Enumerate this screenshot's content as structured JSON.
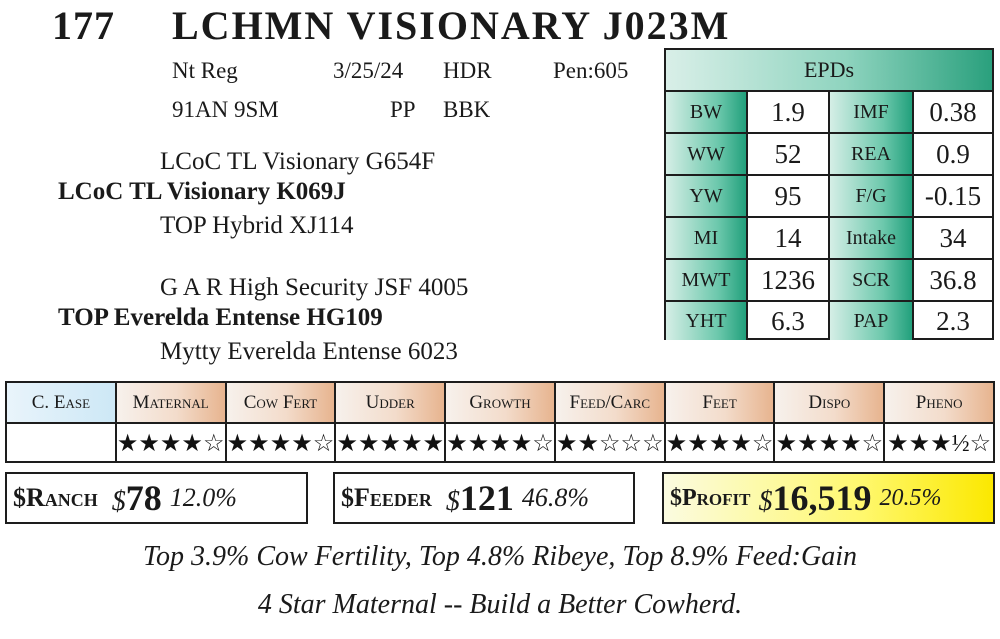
{
  "header": {
    "lot_number": "177",
    "name": "LCHMN VISIONARY J023M"
  },
  "info": {
    "registration": "Nt Reg",
    "birth_date": "3/25/24",
    "category": "HDR",
    "pen": "Pen:605",
    "tattoo": "91AN 9SM",
    "polled": "PP",
    "color": "BBK"
  },
  "pedigree": {
    "sire_sire": "LCoC TL Visionary G654F",
    "sire": "LCoC TL Visionary K069J",
    "sire_dam": "TOP Hybrid XJ114",
    "dam_sire": "G A R High Security JSF 4005",
    "dam": "TOP Everelda Entense HG109",
    "dam_dam": "Mytty Everelda Entense 6023"
  },
  "epds": {
    "title": "EPDs",
    "rows": [
      {
        "l1": "BW",
        "v1": "1.9",
        "l2": "IMF",
        "v2": "0.38"
      },
      {
        "l1": "WW",
        "v1": "52",
        "l2": "REA",
        "v2": "0.9"
      },
      {
        "l1": "YW",
        "v1": "95",
        "l2": "F/G",
        "v2": "-0.15"
      },
      {
        "l1": "MI",
        "v1": "14",
        "l2": "Intake",
        "v2": "34"
      },
      {
        "l1": "MWT",
        "v1": "1236",
        "l2": "SCR",
        "v2": "36.8"
      },
      {
        "l1": "YHT",
        "v1": "6.3",
        "l2": "PAP",
        "v2": "2.3"
      }
    ]
  },
  "ratings": {
    "headers": [
      "C. Ease",
      "Maternal",
      "Cow Fert",
      "Udder",
      "Growth",
      "Feed/Carc",
      "Feet",
      "Dispo",
      "Pheno"
    ],
    "stars": [
      "",
      "★★★★☆",
      "★★★★☆",
      "★★★★★",
      "★★★★☆",
      "★★☆☆☆",
      "★★★★☆",
      "★★★★☆",
      "★★★½☆"
    ],
    "star_values": [
      null,
      4,
      4,
      5,
      4,
      2,
      4,
      4,
      3.5
    ]
  },
  "indexes": {
    "ranch": {
      "label": "$Ranch",
      "currency": "$",
      "value": "78",
      "percent": "12.0%"
    },
    "feeder": {
      "label": "$Feeder",
      "currency": "$",
      "value": "121",
      "percent": "46.8%"
    },
    "profit": {
      "label": "$Profit",
      "currency": "$",
      "value": "16,519",
      "percent": "20.5%"
    }
  },
  "footer": {
    "line1": "Top 3.9% Cow Fertility, Top 4.8% Ribeye, Top 8.9% Feed:Gain",
    "line2": "4 Star Maternal -- Build a Better Cowherd."
  },
  "colors": {
    "epd_accent": "#2aa07d",
    "rating_header_accent": "#e7b48f",
    "profit_highlight": "#fff86e"
  }
}
